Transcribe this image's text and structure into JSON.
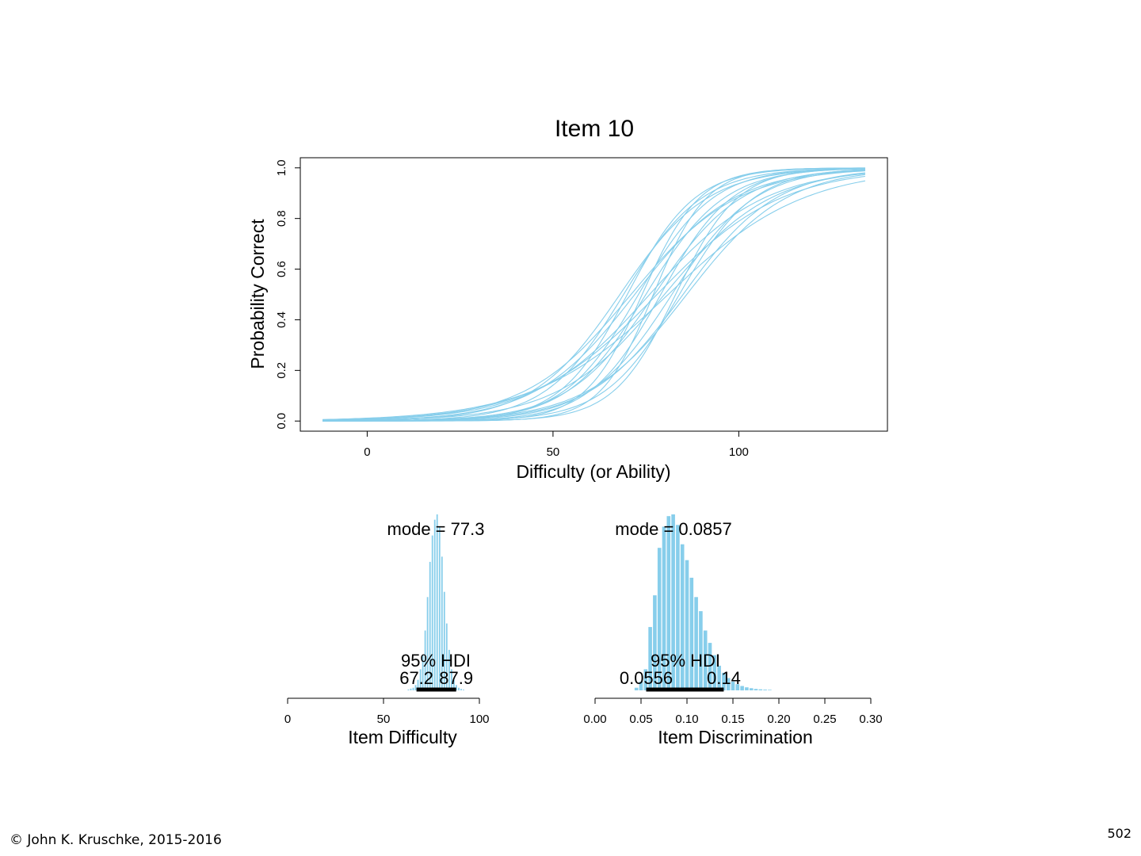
{
  "colors": {
    "curve": "#87CEEB",
    "bar": "#87CEEB",
    "hdi": "#000000"
  },
  "chart_data": [
    {
      "type": "line",
      "title": "Item 10",
      "xlabel": "Difficulty (or Ability)",
      "ylabel": "Probability Correct",
      "xlim": [
        -18,
        140
      ],
      "ylim": [
        -0.04,
        1.04
      ],
      "x_ticks": [
        0,
        50,
        100
      ],
      "x_tick_labels": [
        "0",
        "50",
        "100"
      ],
      "y_ticks": [
        0,
        0.2,
        0.4,
        0.6,
        0.8,
        1.0
      ],
      "y_tick_labels": [
        "0.0",
        "0.2",
        "0.4",
        "0.6",
        "0.8",
        "1.0"
      ],
      "x_range": [
        -12,
        134
      ],
      "curve_model": "logistic",
      "curves": [
        {
          "location": 77.3,
          "discrimination": 0.0857
        },
        {
          "location": 72.0,
          "discrimination": 0.075
        },
        {
          "location": 75.0,
          "discrimination": 0.095
        },
        {
          "location": 80.0,
          "discrimination": 0.07
        },
        {
          "location": 70.0,
          "discrimination": 0.11
        },
        {
          "location": 82.0,
          "discrimination": 0.09
        },
        {
          "location": 78.0,
          "discrimination": 0.06
        },
        {
          "location": 74.0,
          "discrimination": 0.13
        },
        {
          "location": 85.0,
          "discrimination": 0.08
        },
        {
          "location": 68.0,
          "discrimination": 0.085
        },
        {
          "location": 79.0,
          "discrimination": 0.105
        },
        {
          "location": 76.0,
          "discrimination": 0.065
        },
        {
          "location": 83.0,
          "discrimination": 0.12
        },
        {
          "location": 71.0,
          "discrimination": 0.07
        },
        {
          "location": 77.0,
          "discrimination": 0.14
        },
        {
          "location": 86.0,
          "discrimination": 0.075
        },
        {
          "location": 73.0,
          "discrimination": 0.1
        },
        {
          "location": 81.0,
          "discrimination": 0.055
        },
        {
          "location": 69.0,
          "discrimination": 0.095
        },
        {
          "location": 84.0,
          "discrimination": 0.1
        }
      ]
    },
    {
      "type": "bar",
      "xlabel": "Item Difficulty",
      "xlim": [
        0,
        100
      ],
      "x_ticks": [
        0,
        50,
        100
      ],
      "x_tick_labels": [
        "0",
        "50",
        "100"
      ],
      "mode_label": "mode = 77.3",
      "hdi_label": "95% HDI",
      "hdi_low": 67.2,
      "hdi_high": 87.9,
      "hdi_low_label": "67.2",
      "hdi_high_label": "87.9",
      "bin_width": 1.25,
      "bins": [
        {
          "x": 63.0,
          "value": 0.005
        },
        {
          "x": 64.25,
          "value": 0.01
        },
        {
          "x": 65.5,
          "value": 0.015
        },
        {
          "x": 66.75,
          "value": 0.03
        },
        {
          "x": 68.0,
          "value": 0.06
        },
        {
          "x": 69.25,
          "value": 0.12
        },
        {
          "x": 70.5,
          "value": 0.2
        },
        {
          "x": 71.75,
          "value": 0.34
        },
        {
          "x": 73.0,
          "value": 0.53
        },
        {
          "x": 74.25,
          "value": 0.73
        },
        {
          "x": 75.5,
          "value": 0.88
        },
        {
          "x": 76.75,
          "value": 0.97
        },
        {
          "x": 78.0,
          "value": 1.0
        },
        {
          "x": 79.25,
          "value": 0.93
        },
        {
          "x": 80.5,
          "value": 0.76
        },
        {
          "x": 81.75,
          "value": 0.56
        },
        {
          "x": 83.0,
          "value": 0.38
        },
        {
          "x": 84.25,
          "value": 0.23
        },
        {
          "x": 85.5,
          "value": 0.12
        },
        {
          "x": 86.75,
          "value": 0.06
        },
        {
          "x": 88.0,
          "value": 0.03
        },
        {
          "x": 89.25,
          "value": 0.015
        },
        {
          "x": 90.5,
          "value": 0.008
        },
        {
          "x": 91.75,
          "value": 0.004
        }
      ]
    },
    {
      "type": "bar",
      "xlabel": "Item Discrimination",
      "xlim": [
        0,
        0.3
      ],
      "x_ticks": [
        0,
        0.05,
        0.1,
        0.15,
        0.2,
        0.25,
        0.3
      ],
      "x_tick_labels": [
        "0.00",
        "0.05",
        "0.10",
        "0.15",
        "0.20",
        "0.25",
        "0.30"
      ],
      "mode_label": "mode = 0.0857",
      "hdi_label": "95% HDI",
      "hdi_low": 0.0556,
      "hdi_high": 0.14,
      "hdi_low_label": "0.0556",
      "hdi_high_label": "0.14",
      "bin_width": 0.005,
      "bins": [
        {
          "x": 0.045,
          "value": 0.015
        },
        {
          "x": 0.05,
          "value": 0.05
        },
        {
          "x": 0.055,
          "value": 0.12
        },
        {
          "x": 0.06,
          "value": 0.36
        },
        {
          "x": 0.065,
          "value": 0.54
        },
        {
          "x": 0.07,
          "value": 0.81
        },
        {
          "x": 0.075,
          "value": 0.93
        },
        {
          "x": 0.08,
          "value": 0.99
        },
        {
          "x": 0.085,
          "value": 1.0
        },
        {
          "x": 0.09,
          "value": 0.94
        },
        {
          "x": 0.095,
          "value": 0.83
        },
        {
          "x": 0.1,
          "value": 0.74
        },
        {
          "x": 0.105,
          "value": 0.64
        },
        {
          "x": 0.11,
          "value": 0.53
        },
        {
          "x": 0.115,
          "value": 0.45
        },
        {
          "x": 0.12,
          "value": 0.34
        },
        {
          "x": 0.125,
          "value": 0.27
        },
        {
          "x": 0.13,
          "value": 0.2
        },
        {
          "x": 0.135,
          "value": 0.14
        },
        {
          "x": 0.14,
          "value": 0.1
        },
        {
          "x": 0.145,
          "value": 0.07
        },
        {
          "x": 0.15,
          "value": 0.05
        },
        {
          "x": 0.155,
          "value": 0.035
        },
        {
          "x": 0.16,
          "value": 0.025
        },
        {
          "x": 0.165,
          "value": 0.017
        },
        {
          "x": 0.17,
          "value": 0.012
        },
        {
          "x": 0.175,
          "value": 0.008
        },
        {
          "x": 0.18,
          "value": 0.006
        },
        {
          "x": 0.185,
          "value": 0.004
        },
        {
          "x": 0.19,
          "value": 0.003
        }
      ]
    }
  ],
  "footer": {
    "copyright": "© John K. Kruschke, 2015-2016",
    "page_number": "502"
  }
}
